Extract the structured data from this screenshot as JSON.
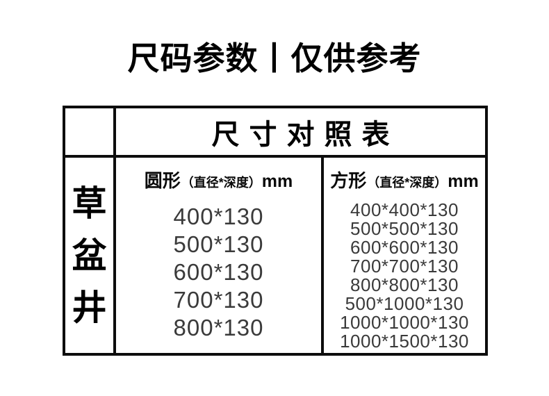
{
  "title": "尺码参数丨仅供参考",
  "table": {
    "header": "尺寸对照表",
    "row_label": "草盆井",
    "row_label_chars": [
      "草",
      "盆",
      "井"
    ],
    "columns": [
      {
        "shape": "圆形",
        "spec": "（直径*深度）",
        "unit": "mm",
        "values": [
          "400*130",
          "500*130",
          "600*130",
          "700*130",
          "800*130"
        ]
      },
      {
        "shape": "方形",
        "spec": "（直径*深度）",
        "unit": "mm",
        "values": [
          "400*400*130",
          "500*500*130",
          "600*600*130",
          "700*700*130",
          "800*800*130",
          "500*1000*130",
          "1000*1000*130",
          "1000*1500*130"
        ]
      }
    ]
  },
  "colors": {
    "background": "#ffffff",
    "border": "#0d0d0d",
    "heading_text": "#000000",
    "value_text": "#3a3a3a"
  }
}
